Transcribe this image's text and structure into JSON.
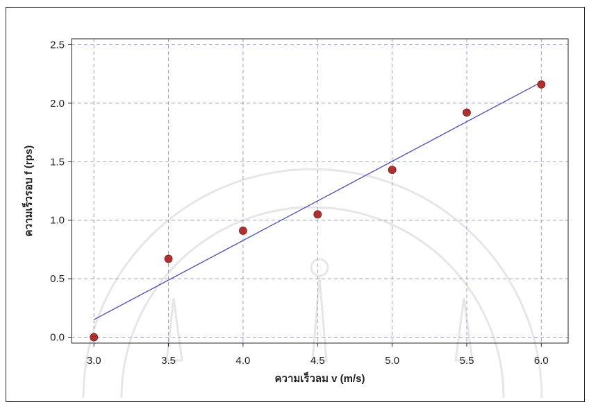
{
  "chart_data": {
    "type": "scatter",
    "xlabel": "ความเร็วลม v (m/s)",
    "ylabel": "ความเร็วรอบ f (rps)",
    "xlim": [
      2.85,
      6.18
    ],
    "ylim": [
      -0.05,
      2.55
    ],
    "x_ticks": [
      "3.0",
      "3.5",
      "4.0",
      "4.5",
      "5.0",
      "5.5",
      "6.0"
    ],
    "y_ticks": [
      "0.0",
      "0.5",
      "1.0",
      "1.5",
      "2.0",
      "2.5"
    ],
    "grid": true,
    "series": [
      {
        "points": [
          {
            "x": 3.0,
            "y": 0.0
          },
          {
            "x": 3.5,
            "y": 0.67
          },
          {
            "x": 4.0,
            "y": 0.91
          },
          {
            "x": 4.5,
            "y": 1.05
          },
          {
            "x": 5.0,
            "y": 1.43
          },
          {
            "x": 5.5,
            "y": 1.92
          },
          {
            "x": 6.0,
            "y": 2.16
          }
        ],
        "color": "#b03030"
      }
    ],
    "trendline": {
      "x": [
        3.0,
        6.0
      ],
      "y": [
        0.15,
        2.18
      ],
      "color": "#4a4ab8"
    }
  }
}
